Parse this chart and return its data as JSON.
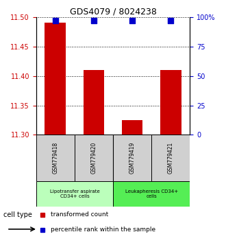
{
  "title": "GDS4079 / 8024238",
  "samples": [
    "GSM779418",
    "GSM779420",
    "GSM779419",
    "GSM779421"
  ],
  "bar_values": [
    11.49,
    11.41,
    11.325,
    11.41
  ],
  "percentile_values": [
    97,
    97,
    97,
    97
  ],
  "ylim": [
    11.3,
    11.5
  ],
  "yticks": [
    11.3,
    11.35,
    11.4,
    11.45,
    11.5
  ],
  "y2lim": [
    0,
    100
  ],
  "y2ticks": [
    0,
    25,
    50,
    75,
    100
  ],
  "bar_color": "#cc0000",
  "dot_color": "#0000cc",
  "bar_width": 0.55,
  "dot_size": 28,
  "groups": [
    {
      "label": "Lipotransfer aspirate\nCD34+ cells",
      "color": "#bbffbb"
    },
    {
      "label": "Leukapheresis CD34+\ncells",
      "color": "#55ee55"
    }
  ],
  "cell_type_label": "cell type",
  "legend_bar_label": "transformed count",
  "legend_dot_label": "percentile rank within the sample",
  "left_tick_color": "#cc0000",
  "right_tick_color": "#0000cc",
  "sample_box_color": "#d0d0d0",
  "title_fontsize": 9
}
